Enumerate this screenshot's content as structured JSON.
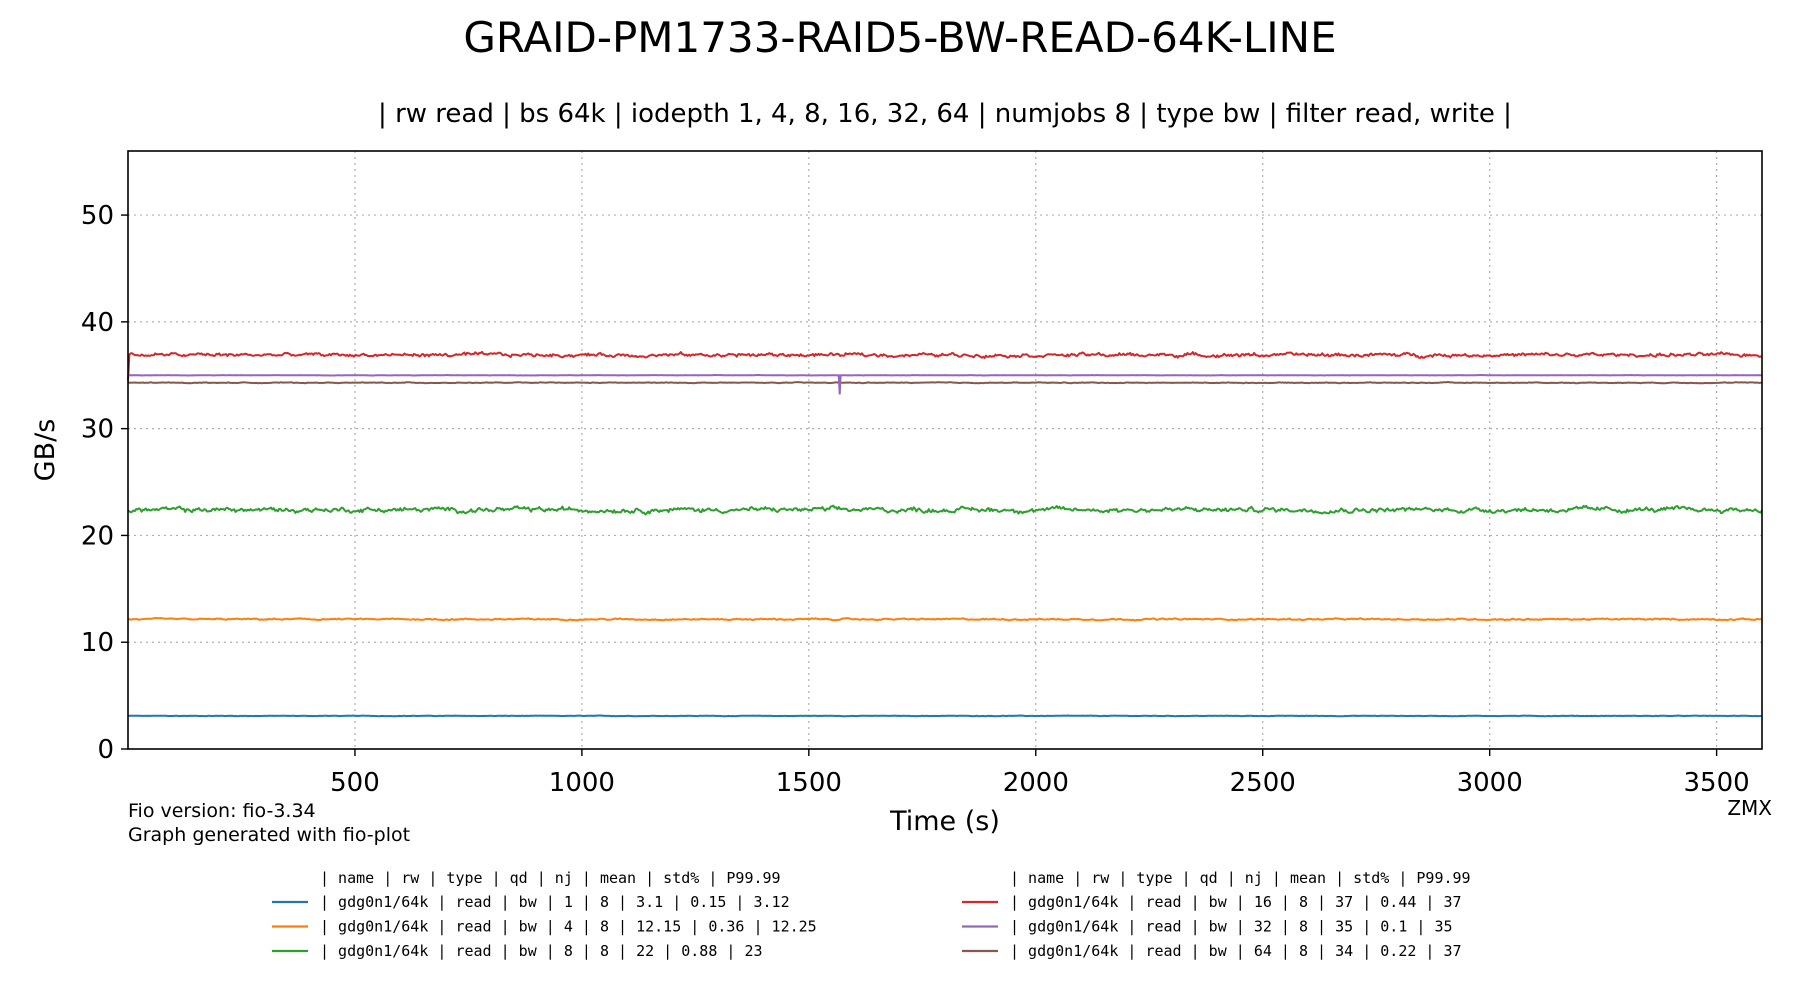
{
  "chart_data": {
    "type": "line",
    "title": "GRAID-PM1733-RAID5-BW-READ-64K-LINE",
    "subtitle": "| rw read | bs 64k | iodepth 1, 4, 8, 16, 32, 64 | numjobs 8 | type bw | filter read, write |",
    "xlabel": "Time (s)",
    "ylabel": "GB/s",
    "xlim": [
      0,
      3600
    ],
    "ylim": [
      0,
      56
    ],
    "xticks": [
      500,
      1000,
      1500,
      2000,
      2500,
      3000,
      3500
    ],
    "yticks": [
      0,
      10,
      20,
      30,
      40,
      50
    ],
    "grid": true,
    "footer_left": [
      "Fio version: fio-3.34",
      "Graph generated with fio-plot"
    ],
    "footer_right": "ZMX",
    "series": [
      {
        "color": "#1f77b4",
        "mean_level": 3.1,
        "noise": 0.02
      },
      {
        "color": "#ff7f0e",
        "mean_level": 12.15,
        "noise": 0.06
      },
      {
        "color": "#2ca02c",
        "mean_level": 22.4,
        "noise": 0.2
      },
      {
        "color": "#d62728",
        "mean_level": 36.9,
        "noise": 0.15
      },
      {
        "color": "#9467bd",
        "mean_level": 35.0,
        "noise": 0.015
      },
      {
        "color": "#8c564b",
        "mean_level": 34.3,
        "noise": 0.03
      }
    ],
    "legend": {
      "header": "| name       | rw    | type | qd | nj | mean   | std% | P99.99",
      "rows": [
        "| gdg0n1/64k |  read |   bw |  1 |  8 |    3.1 | 0.15 |   3.12",
        "| gdg0n1/64k |  read |   bw |  4 |  8 |  12.15 | 0.36 |  12.25",
        "| gdg0n1/64k |  read |   bw |  8 |  8 |     22 | 0.88 |     23",
        "| gdg0n1/64k |  read |   bw | 16 |  8 |     37 | 0.44 |     37",
        "| gdg0n1/64k |  read |   bw | 32 |  8 |     35 |  0.1 |     35",
        "| gdg0n1/64k |  read |   bw | 64 |  8 |     34 | 0.22 |     37"
      ]
    }
  }
}
